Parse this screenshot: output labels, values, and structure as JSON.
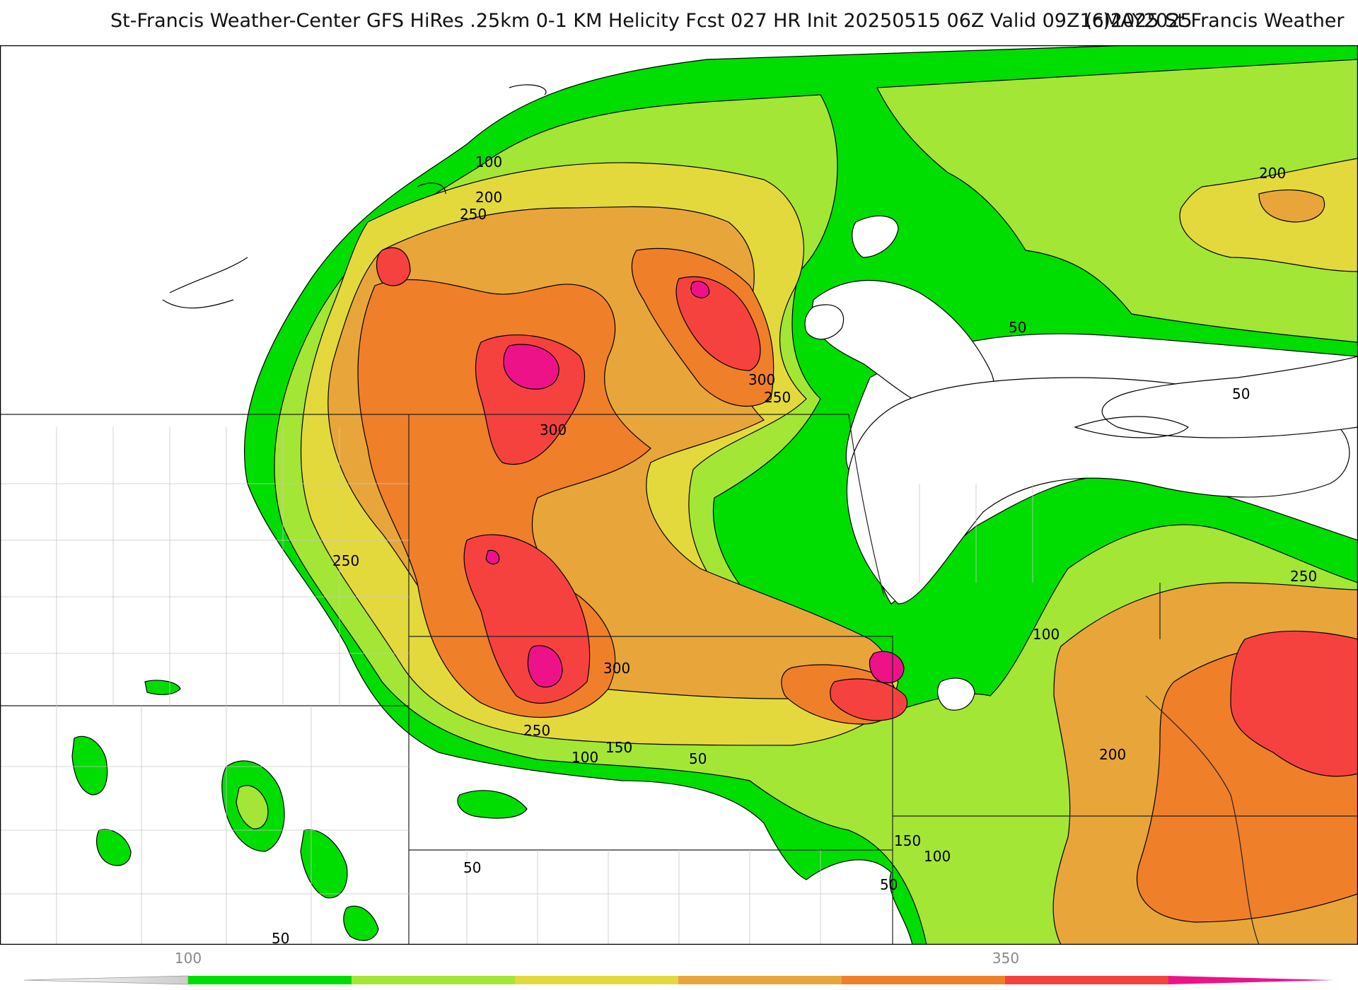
{
  "header": {
    "title": "St-Francis Weather-Center GFS HiRes .25km 0-1 KM Helicity Fcst 027 HR Init 20250515 06Z  Valid 09Z16MAY2025",
    "credit": "(c)2025 St.Francis Weather"
  },
  "contour_labels": {
    "l1": "100",
    "l2": "200",
    "l3": "250",
    "l4": "300",
    "l5": "300",
    "l6": "250",
    "l7": "300",
    "l8": "250",
    "l9": "300",
    "l10": "250",
    "l11": "150",
    "l12": "100",
    "l13": "50",
    "l14": "50",
    "l15": "50",
    "l16": "200",
    "l17": "50",
    "l18": "100",
    "l19": "200",
    "l20": "250",
    "l21": "150",
    "l22": "100",
    "l23": "50",
    "l24": "50"
  },
  "colorbar": {
    "label_left": "100",
    "label_right": "350",
    "colors": [
      "#00dd00",
      "#a3e635",
      "#e3d93d",
      "#e8a63a",
      "#f07f2a",
      "#f5423f",
      "#ee1289"
    ]
  },
  "legend_colors": {
    "no_fill": "#ffffff",
    "lines": "#000000",
    "borders": "#bbbbbb"
  }
}
